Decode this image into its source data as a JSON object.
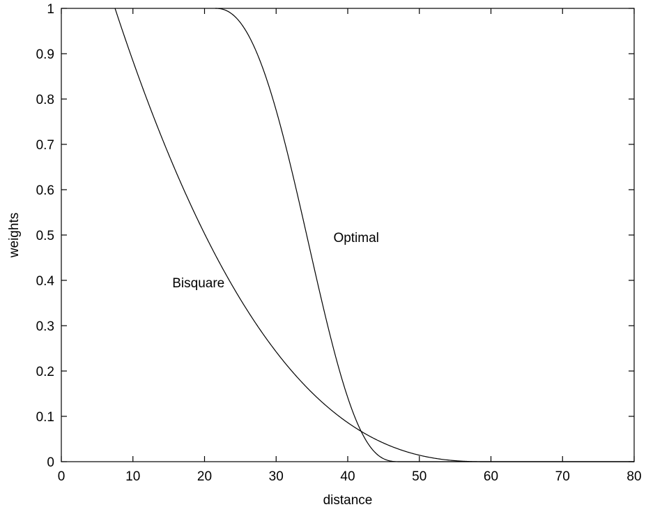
{
  "chart_data": {
    "type": "line",
    "title": "",
    "xlabel": "distance",
    "ylabel": "weights",
    "xlim": [
      0,
      80
    ],
    "ylim": [
      0,
      1
    ],
    "xticks": [
      0,
      10,
      20,
      30,
      40,
      50,
      60,
      70,
      80
    ],
    "yticks": [
      0,
      0.1,
      0.2,
      0.3,
      0.4,
      0.5,
      0.6,
      0.7,
      0.8,
      0.9,
      1
    ],
    "grid": false,
    "legend": "none",
    "series": [
      {
        "name": "Bisquare",
        "x": [
          7.5,
          10,
          15,
          20,
          25,
          30,
          35,
          40,
          45,
          50,
          55,
          59.5,
          65,
          70,
          80
        ],
        "y": [
          1.0,
          0.91,
          0.72,
          0.55,
          0.405,
          0.28,
          0.18,
          0.115,
          0.06,
          0.025,
          0.006,
          0.0,
          0.0,
          0.0,
          0.0
        ]
      },
      {
        "name": "Optimal",
        "x": [
          21.5,
          23,
          25,
          28,
          31,
          34,
          37,
          40,
          42,
          44,
          46,
          47.5,
          55,
          65,
          80
        ],
        "y": [
          1.0,
          0.99,
          0.95,
          0.86,
          0.72,
          0.56,
          0.38,
          0.2,
          0.1,
          0.04,
          0.008,
          0.0,
          0.0,
          0.0,
          0.0
        ]
      }
    ],
    "annotations": [
      {
        "text": "Bisquare",
        "x": 15.5,
        "y": 0.385
      },
      {
        "text": "Optimal",
        "x": 38,
        "y": 0.485
      }
    ]
  }
}
